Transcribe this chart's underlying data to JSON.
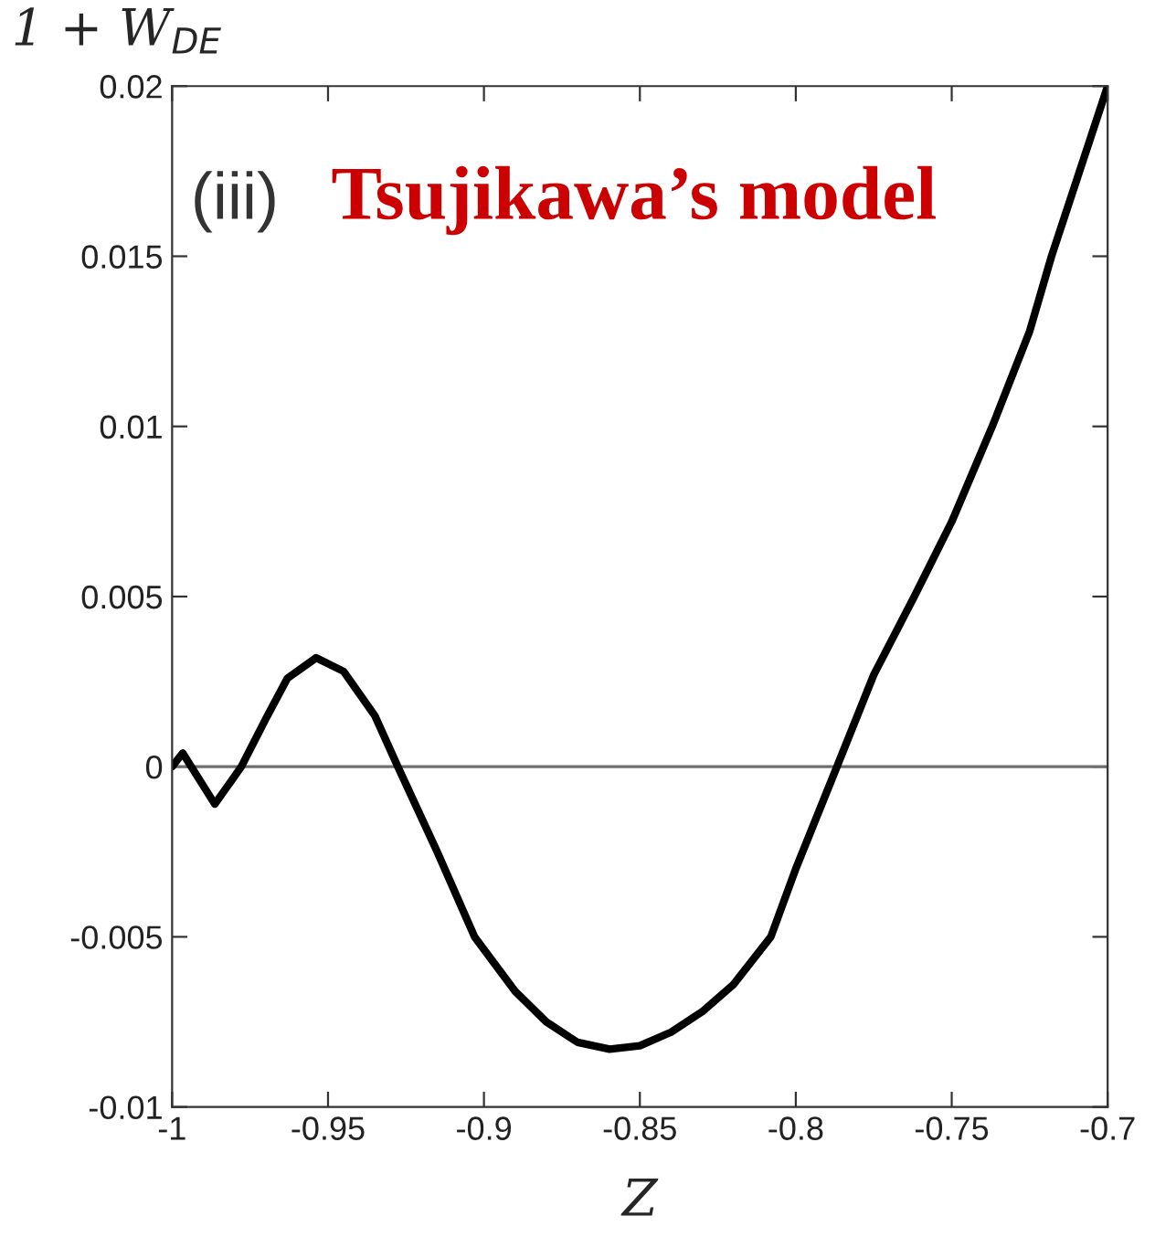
{
  "chart_data": {
    "type": "line",
    "xlabel": "Z",
    "ylabel": "1 + W$_{DE}$",
    "annotations": [
      "(iii)",
      "Tsujikawa’s model"
    ],
    "x": [
      -1,
      -0.9966,
      -0.9863,
      -0.9778,
      -0.97,
      -0.963,
      -0.9538,
      -0.945,
      -0.935,
      -0.9276,
      -0.915,
      -0.903,
      -0.89,
      -0.88,
      -0.87,
      -0.8597,
      -0.85,
      -0.84,
      -0.83,
      -0.82,
      -0.808,
      -0.8,
      -0.7868,
      -0.775,
      -0.762,
      -0.75,
      -0.737,
      -0.725,
      -0.718,
      -0.7
    ],
    "series": [
      {
        "color": "#000000",
        "values": [
          0,
          0.0004,
          -0.0011,
          0,
          0.0014,
          0.0026,
          0.0032,
          0.0028,
          0.0015,
          0,
          -0.0025,
          -0.005,
          -0.0066,
          -0.0075,
          -0.0081,
          -0.0083,
          -0.0082,
          -0.0078,
          -0.0072,
          -0.0064,
          -0.005,
          -0.003,
          0,
          0.0027,
          0.005,
          0.0072,
          0.01,
          0.0128,
          0.015,
          0.02
        ]
      }
    ],
    "xlim": [
      -1,
      -0.7
    ],
    "xticks": [
      -1,
      -0.95,
      -0.9,
      -0.85,
      -0.8,
      -0.75,
      -0.7
    ],
    "ylim": [
      -0.01,
      0.02
    ],
    "yticks": [
      -0.01,
      -0.005,
      0,
      0.005,
      0.01,
      0.015,
      0.02
    ],
    "ref_lines": [
      {
        "axis": "y",
        "value": 0,
        "color": "#6e6e6e"
      }
    ],
    "grid": false,
    "legend": false
  }
}
